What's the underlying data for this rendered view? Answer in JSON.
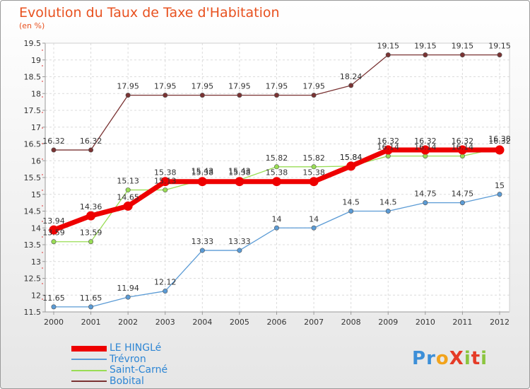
{
  "title": "Evolution du Taux de Taxe d'Habitation",
  "unit": "(en %)",
  "logo": {
    "text": "ProXiti",
    "letter_colors": [
      "#3c8fd8",
      "#3c8fd8",
      "#f2a31c",
      "#e53b27",
      "#8bc53f",
      "#e53b27",
      "#8bc53f"
    ]
  },
  "chart_data": {
    "type": "line",
    "title": "Evolution du Taux de Taxe d'Habitation",
    "ylabel": "(en %)",
    "xlabel": "",
    "x": [
      "2000",
      "2001",
      "2002",
      "2003",
      "2004",
      "2005",
      "2006",
      "2007",
      "2008",
      "2009",
      "2010",
      "2011",
      "2012"
    ],
    "ylim": [
      11.5,
      19.5
    ],
    "yticks": [
      "11.5",
      "12",
      "12.5",
      "13",
      "13.5",
      "14",
      "14.5",
      "15",
      "15.5",
      "16",
      "16.5",
      "17",
      "17.5",
      "18",
      "18.5",
      "19",
      "19.5"
    ],
    "grid": true,
    "legend_position": "bottom-left",
    "series": [
      {
        "name": "LE HINGLé",
        "color": "#ee0000",
        "values": [
          13.94,
          14.36,
          14.65,
          15.38,
          15.38,
          15.38,
          15.38,
          15.38,
          15.84,
          16.32,
          16.32,
          16.32,
          16.32
        ],
        "labels": [
          "13.94",
          "14.36",
          "14.65",
          "15.38",
          "15.38",
          "15.38",
          "15.38",
          "15.38",
          "15.84",
          "16.32",
          "16.32",
          "16.32",
          "16.32"
        ]
      },
      {
        "name": "Trévron",
        "color": "#5b9bd5",
        "values": [
          11.65,
          11.65,
          11.94,
          12.12,
          13.33,
          13.33,
          14,
          14,
          14.5,
          14.5,
          14.75,
          14.75,
          15
        ],
        "labels": [
          "11.65",
          "11.65",
          "11.94",
          "12.12",
          "13.33",
          "13.33",
          "14",
          "14",
          "14.5",
          "14.5",
          "14.75",
          "14.75",
          "15"
        ]
      },
      {
        "name": "Saint-Carné",
        "color": "#99dd55",
        "values": [
          13.59,
          13.59,
          15.13,
          15.13,
          15.43,
          15.43,
          15.82,
          15.82,
          15.84,
          16.14,
          16.14,
          16.14,
          16.38
        ],
        "labels": [
          "13.59",
          "13.59",
          "15.13",
          "15.13",
          "15.43",
          "15.43",
          "15.82",
          "15.82",
          "15.84",
          "16.14",
          "16.14",
          "16.14",
          "16.38"
        ]
      },
      {
        "name": "Bobital",
        "color": "#7a3333",
        "values": [
          16.32,
          16.32,
          17.95,
          17.95,
          17.95,
          17.95,
          17.95,
          17.95,
          18.24,
          19.15,
          19.15,
          19.15,
          19.15
        ],
        "labels": [
          "16.32",
          "16.32",
          "17.95",
          "17.95",
          "17.95",
          "17.95",
          "17.95",
          "17.95",
          "18.24",
          "19.15",
          "19.15",
          "19.15",
          "19.15"
        ]
      }
    ]
  }
}
